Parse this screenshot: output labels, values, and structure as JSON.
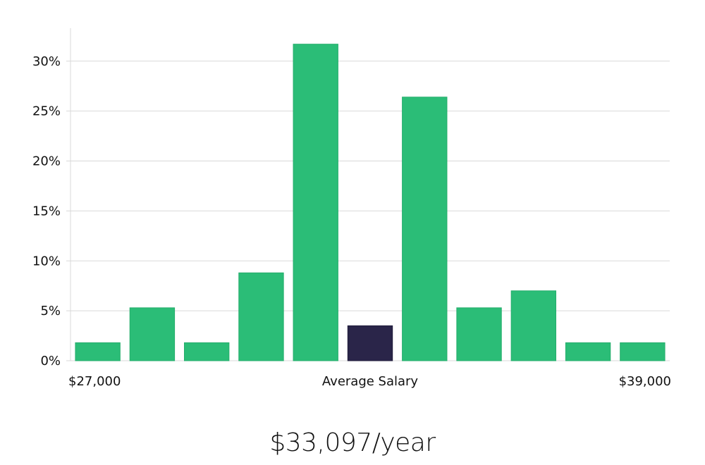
{
  "chart_data": {
    "type": "bar",
    "values": [
      1.8,
      5.3,
      1.8,
      8.8,
      31.7,
      3.5,
      26.4,
      5.3,
      7.0,
      1.8,
      1.8
    ],
    "highlight_index": 5,
    "ylim": [
      0,
      33.3
    ],
    "yticks": [
      0,
      5,
      10,
      15,
      20,
      25,
      30
    ],
    "ytick_format": "{v}%",
    "x_labels": {
      "left": "$27,000",
      "center": "Average Salary",
      "right": "$39,000"
    },
    "grid": true,
    "colors": {
      "bar": "#2bbd77",
      "highlight": "#2a2549",
      "grid": "#d9d9d9"
    }
  },
  "salary": {
    "value": "$33,097/year"
  }
}
